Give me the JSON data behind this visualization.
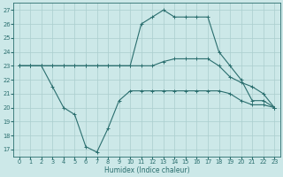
{
  "x": [
    0,
    1,
    2,
    3,
    4,
    5,
    6,
    7,
    8,
    9,
    10,
    11,
    12,
    13,
    14,
    15,
    16,
    17,
    18,
    19,
    20,
    21,
    22,
    23
  ],
  "y_max": [
    23,
    23,
    23,
    23,
    23,
    23,
    23,
    23,
    23,
    23,
    23,
    26,
    26.5,
    27,
    26.5,
    26.5,
    26.5,
    26.5,
    24,
    23,
    22,
    20.5,
    20.5,
    20
  ],
  "y_avg": [
    23,
    23,
    23,
    23,
    23,
    23,
    23,
    23,
    23,
    23,
    23,
    23,
    23,
    23.3,
    23.5,
    23.5,
    23.5,
    23.5,
    23,
    22.2,
    21.8,
    21.5,
    21,
    20
  ],
  "y_min": [
    23,
    23,
    23,
    21.5,
    20,
    19.5,
    17.2,
    16.8,
    18.5,
    20.5,
    21.2,
    21.2,
    21.2,
    21.2,
    21.2,
    21.2,
    21.2,
    21.2,
    21.2,
    21,
    20.5,
    20.2,
    20.2,
    20
  ],
  "bg_color": "#cce8e8",
  "line_color": "#2a6e6e",
  "grid_color": "#aacece",
  "xlabel": "Humidex (Indice chaleur)",
  "ylim": [
    16.5,
    27.5
  ],
  "xlim": [
    -0.5,
    23.5
  ],
  "yticks": [
    17,
    18,
    19,
    20,
    21,
    22,
    23,
    24,
    25,
    26,
    27
  ],
  "xticks": [
    0,
    1,
    2,
    3,
    4,
    5,
    6,
    7,
    8,
    9,
    10,
    11,
    12,
    13,
    14,
    15,
    16,
    17,
    18,
    19,
    20,
    21,
    22,
    23
  ],
  "xtick_labels": [
    "0",
    "1",
    "2",
    "3",
    "4",
    "5",
    "6",
    "7",
    "8",
    "9",
    "10",
    "11",
    "12",
    "13",
    "14",
    "15",
    "16",
    "17",
    "18",
    "19",
    "20",
    "21",
    "22",
    "23"
  ],
  "label_fontsize": 5.0,
  "tick_fontsize": 4.8,
  "xlabel_fontsize": 5.5
}
